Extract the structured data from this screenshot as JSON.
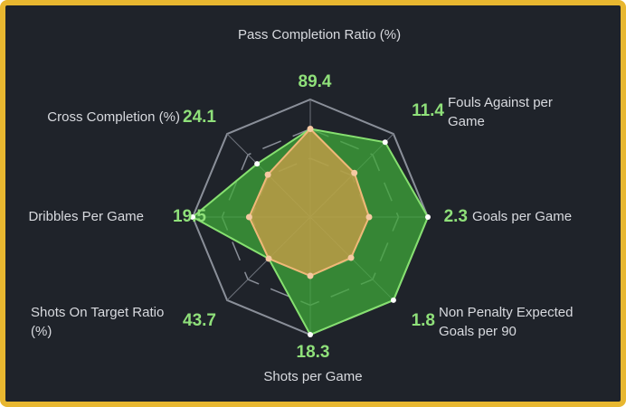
{
  "chart_data": {
    "type": "radar",
    "categories": [
      "Pass Completion Ratio (%)",
      "Fouls Against per Game",
      "Goals per Game",
      "Non Penalty Expected Goals per 90",
      "Shots per Game",
      "Shots On Target Ratio (%)",
      "Dribbles Per Game",
      "Cross Completion (%)"
    ],
    "category_values": [
      89.4,
      11.4,
      2.3,
      1.8,
      18.3,
      43.7,
      19.5,
      24.1
    ],
    "rlim": [
      0,
      1
    ],
    "rticks": [
      0.5,
      0.75,
      1
    ],
    "series": [
      {
        "color": "#3fa83a",
        "values": [
          0.75,
          0.9,
          1.0,
          1.0,
          1.0,
          0.5,
          1.0,
          0.64
        ]
      },
      {
        "color": "#d9a04a",
        "values": [
          0.75,
          0.53,
          0.5,
          0.49,
          0.5,
          0.5,
          0.52,
          0.51
        ]
      }
    ]
  }
}
